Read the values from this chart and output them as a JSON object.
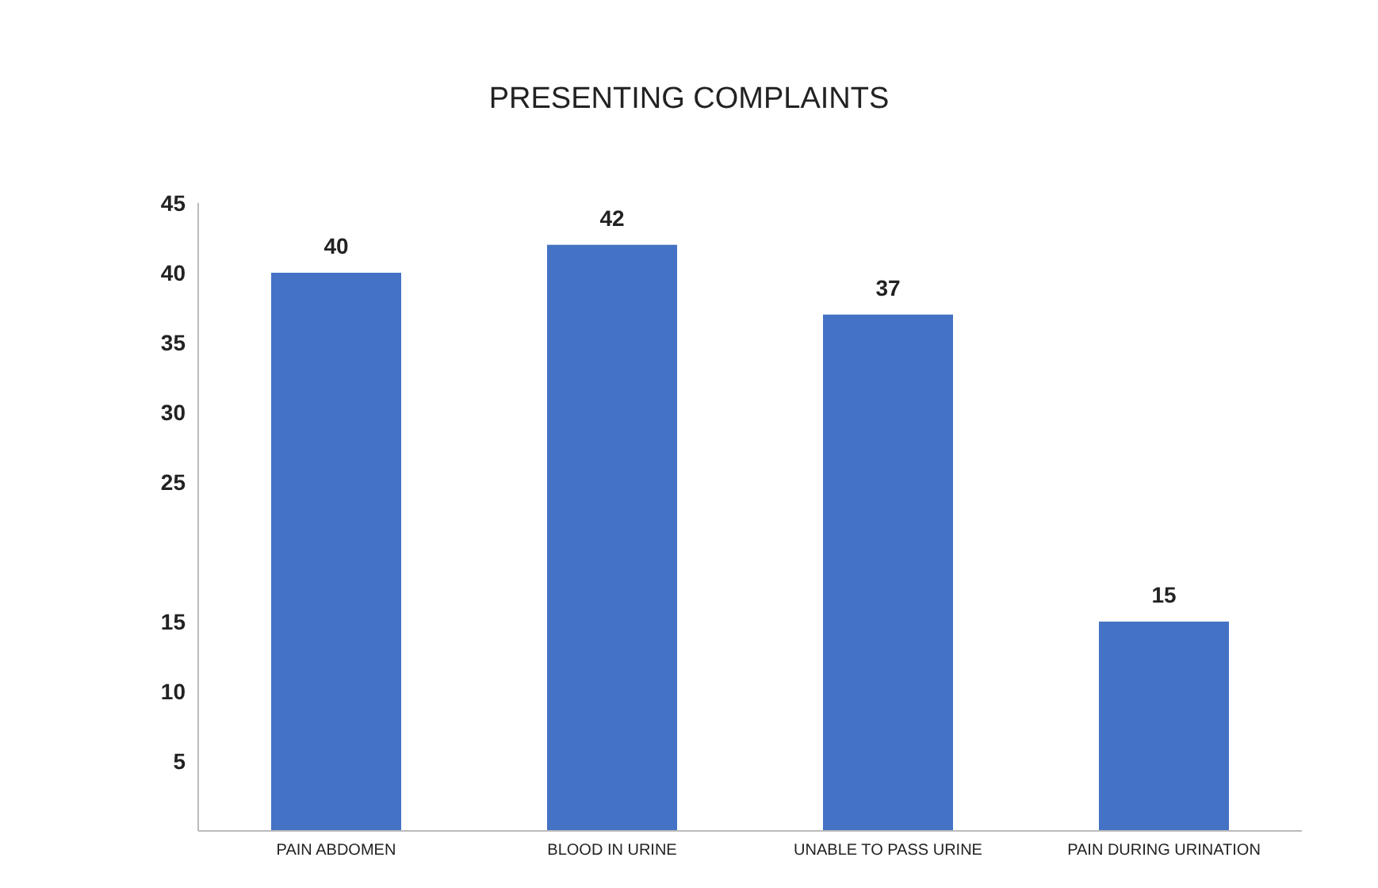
{
  "chart_data": {
    "type": "bar",
    "title": "PRESENTING COMPLAINTS",
    "categories": [
      "PAIN ABDOMEN",
      "BLOOD IN URINE",
      "UNABLE TO PASS URINE",
      "PAIN DURING URINATION"
    ],
    "values": [
      40,
      42,
      37,
      15
    ],
    "color": "#4472c4",
    "ylim": [
      0,
      45
    ],
    "yticks": [
      5,
      10,
      15,
      25,
      30,
      35,
      40,
      45
    ],
    "grid": false,
    "data_labels": true,
    "legend": false
  }
}
